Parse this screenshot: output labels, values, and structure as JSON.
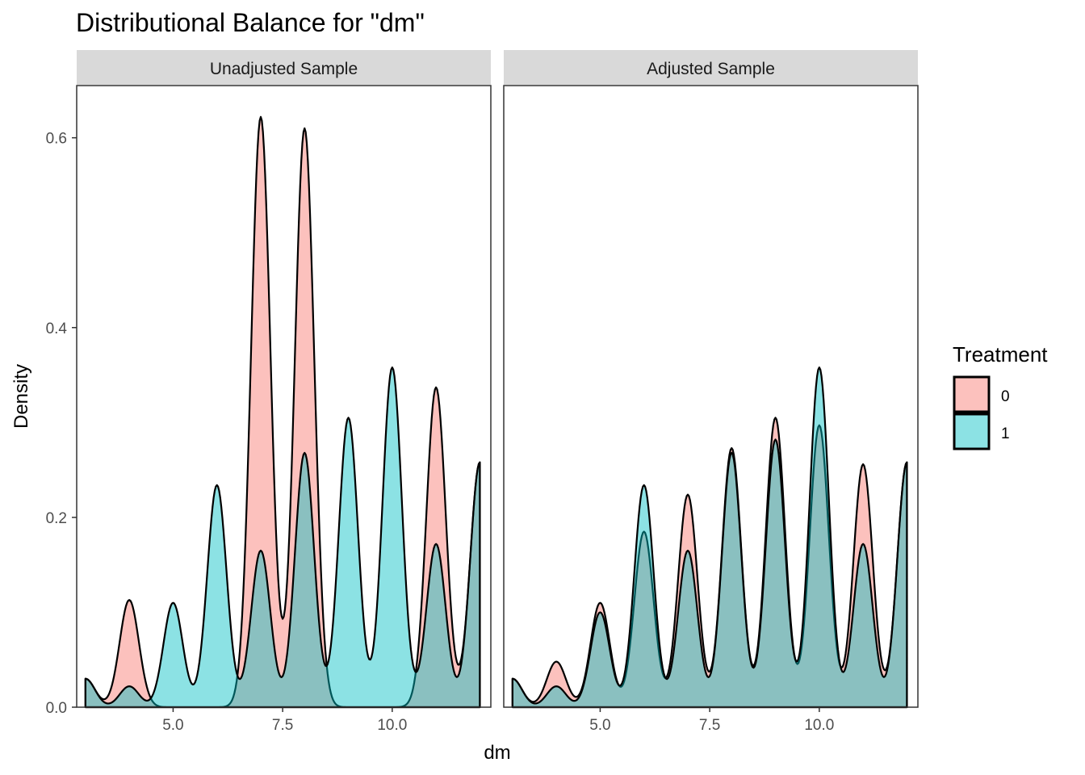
{
  "chart_data": {
    "type": "area",
    "title": "Distributional Balance for \"dm\"",
    "xlabel": "dm",
    "ylabel": "Density",
    "xlim": [
      2.8,
      12.25
    ],
    "ylim": [
      0,
      0.655
    ],
    "x_ticks": [
      5.0,
      7.5,
      10.0
    ],
    "x_tick_labels": [
      "5.0",
      "7.5",
      "10.0"
    ],
    "y_ticks": [
      0.0,
      0.2,
      0.4,
      0.6
    ],
    "y_tick_labels": [
      "0.0",
      "0.2",
      "0.4",
      "0.6"
    ],
    "grid": false,
    "legend": {
      "title": "Treatment",
      "position": "right",
      "entries": [
        {
          "label": "0",
          "color": "#F8766D"
        },
        {
          "label": "1",
          "color": "#00BFC4"
        }
      ]
    },
    "x_range": [
      3,
      12
    ],
    "kernel_bandwidth": 0.22,
    "panels": [
      {
        "strip": "Unadjusted Sample",
        "series": [
          {
            "name": "0",
            "color": "#F8766D",
            "x": [
              3,
              4,
              5,
              6,
              7,
              8,
              9,
              10,
              11,
              12
            ],
            "y": [
              0.03,
              0.113,
              0.0,
              0.0,
              0.622,
              0.61,
              0.0,
              0.0,
              0.337,
              0.258
            ]
          },
          {
            "name": "1",
            "color": "#00BFC4",
            "x": [
              3,
              4,
              5,
              6,
              7,
              8,
              9,
              10,
              11,
              12
            ],
            "y": [
              0.03,
              0.022,
              0.11,
              0.234,
              0.165,
              0.268,
              0.305,
              0.358,
              0.172,
              0.258
            ]
          }
        ]
      },
      {
        "strip": "Adjusted Sample",
        "series": [
          {
            "name": "0",
            "color": "#F8766D",
            "x": [
              3,
              4,
              5,
              6,
              7,
              8,
              9,
              10,
              11,
              12
            ],
            "y": [
              0.03,
              0.048,
              0.11,
              0.185,
              0.224,
              0.273,
              0.305,
              0.297,
              0.256,
              0.258
            ]
          },
          {
            "name": "1",
            "color": "#00BFC4",
            "x": [
              3,
              4,
              5,
              6,
              7,
              8,
              9,
              10,
              11,
              12
            ],
            "y": [
              0.03,
              0.022,
              0.1,
              0.234,
              0.165,
              0.268,
              0.282,
              0.358,
              0.172,
              0.258
            ]
          }
        ]
      }
    ]
  }
}
